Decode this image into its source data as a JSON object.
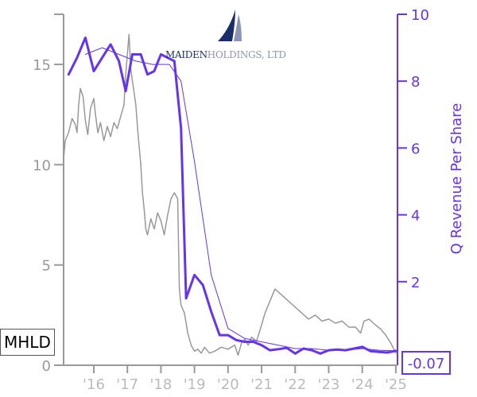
{
  "ticker": "MHLD",
  "last_value_label": "-0.07",
  "logo": {
    "name_part1": "MAIDEN",
    "name_part2": "HOLDINGS, LTD"
  },
  "colors": {
    "price": "#999999",
    "revenue": "#6633ee",
    "axis_left": "#999999",
    "axis_right": "#6633ee"
  },
  "chart_data": {
    "type": "line",
    "xlabel": "",
    "ylabel_left": "",
    "ylabel_right": "Q Revenue Per Share",
    "x_ticks": [
      "'16",
      "'17",
      "'18",
      "'19",
      "'20",
      "'21",
      "'22",
      "'23",
      "'24",
      "'25"
    ],
    "x_tick_years": [
      2016,
      2017,
      2018,
      2019,
      2020,
      2021,
      2022,
      2023,
      2024,
      2025
    ],
    "x_range": [
      2015.1,
      2025.05
    ],
    "ylim_left": [
      0,
      17.5
    ],
    "yticks_left": [
      0,
      5,
      10,
      15
    ],
    "ylim_right": [
      -0.5,
      10
    ],
    "yticks_right": [
      2,
      4,
      6,
      8,
      10
    ],
    "grid": false,
    "series": [
      {
        "axis": "left",
        "points": [
          [
            2015.1,
            10.3
          ],
          [
            2015.15,
            11.2
          ],
          [
            2015.25,
            11.6
          ],
          [
            2015.35,
            12.3
          ],
          [
            2015.45,
            12.0
          ],
          [
            2015.5,
            11.6
          ],
          [
            2015.55,
            13.0
          ],
          [
            2015.6,
            13.8
          ],
          [
            2015.68,
            13.4
          ],
          [
            2015.75,
            12.2
          ],
          [
            2015.82,
            11.5
          ],
          [
            2015.9,
            12.8
          ],
          [
            2016.0,
            13.3
          ],
          [
            2016.05,
            12.5
          ],
          [
            2016.12,
            11.6
          ],
          [
            2016.2,
            12.1
          ],
          [
            2016.3,
            11.2
          ],
          [
            2016.4,
            11.9
          ],
          [
            2016.5,
            11.4
          ],
          [
            2016.6,
            12.1
          ],
          [
            2016.7,
            11.8
          ],
          [
            2016.8,
            12.4
          ],
          [
            2016.9,
            13.0
          ],
          [
            2016.95,
            14.5
          ],
          [
            2017.0,
            15.5
          ],
          [
            2017.05,
            16.5
          ],
          [
            2017.1,
            14.8
          ],
          [
            2017.15,
            14.2
          ],
          [
            2017.25,
            13.0
          ],
          [
            2017.32,
            11.5
          ],
          [
            2017.4,
            10.0
          ],
          [
            2017.45,
            8.6
          ],
          [
            2017.5,
            7.8
          ],
          [
            2017.55,
            6.8
          ],
          [
            2017.6,
            6.5
          ],
          [
            2017.7,
            7.3
          ],
          [
            2017.8,
            6.8
          ],
          [
            2017.9,
            7.6
          ],
          [
            2018.0,
            7.2
          ],
          [
            2018.1,
            6.5
          ],
          [
            2018.2,
            7.5
          ],
          [
            2018.3,
            8.3
          ],
          [
            2018.4,
            8.6
          ],
          [
            2018.5,
            8.3
          ],
          [
            2018.55,
            3.8
          ],
          [
            2018.6,
            3.0
          ],
          [
            2018.7,
            2.6
          ],
          [
            2018.8,
            1.6
          ],
          [
            2018.9,
            1.0
          ],
          [
            2019.0,
            0.7
          ],
          [
            2019.1,
            0.8
          ],
          [
            2019.2,
            0.6
          ],
          [
            2019.3,
            0.9
          ],
          [
            2019.45,
            0.6
          ],
          [
            2019.6,
            0.7
          ],
          [
            2019.8,
            0.9
          ],
          [
            2020.0,
            0.8
          ],
          [
            2020.2,
            1.0
          ],
          [
            2020.3,
            0.5
          ],
          [
            2020.4,
            1.1
          ],
          [
            2020.5,
            1.3
          ],
          [
            2020.6,
            1.0
          ],
          [
            2020.7,
            1.4
          ],
          [
            2020.85,
            1.2
          ],
          [
            2021.0,
            2.0
          ],
          [
            2021.1,
            2.6
          ],
          [
            2021.2,
            3.0
          ],
          [
            2021.3,
            3.4
          ],
          [
            2021.4,
            3.8
          ],
          [
            2021.6,
            3.5
          ],
          [
            2021.8,
            3.2
          ],
          [
            2022.0,
            2.9
          ],
          [
            2022.2,
            2.6
          ],
          [
            2022.4,
            2.3
          ],
          [
            2022.6,
            2.5
          ],
          [
            2022.8,
            2.2
          ],
          [
            2023.0,
            2.3
          ],
          [
            2023.2,
            2.1
          ],
          [
            2023.4,
            2.2
          ],
          [
            2023.6,
            1.9
          ],
          [
            2023.8,
            1.9
          ],
          [
            2023.95,
            1.6
          ],
          [
            2024.05,
            2.2
          ],
          [
            2024.2,
            2.3
          ],
          [
            2024.4,
            2.0
          ],
          [
            2024.55,
            1.8
          ],
          [
            2024.7,
            1.5
          ],
          [
            2024.85,
            1.1
          ],
          [
            2025.0,
            0.6
          ]
        ]
      },
      {
        "axis": "right",
        "points": [
          [
            2015.25,
            8.2
          ],
          [
            2015.5,
            8.7
          ],
          [
            2015.75,
            9.3
          ],
          [
            2016.0,
            8.3
          ],
          [
            2016.25,
            8.7
          ],
          [
            2016.5,
            9.1
          ],
          [
            2016.75,
            8.6
          ],
          [
            2016.95,
            7.7
          ],
          [
            2017.15,
            8.8
          ],
          [
            2017.4,
            8.8
          ],
          [
            2017.6,
            8.2
          ],
          [
            2017.8,
            8.3
          ],
          [
            2018.0,
            8.8
          ],
          [
            2018.2,
            8.7
          ],
          [
            2018.4,
            8.6
          ],
          [
            2018.6,
            6.6
          ],
          [
            2018.75,
            1.5
          ],
          [
            2019.0,
            2.2
          ],
          [
            2019.25,
            1.9
          ],
          [
            2019.5,
            1.1
          ],
          [
            2019.75,
            0.4
          ],
          [
            2020.0,
            0.4
          ],
          [
            2020.25,
            0.25
          ],
          [
            2020.5,
            0.2
          ],
          [
            2020.75,
            0.2
          ],
          [
            2021.0,
            0.1
          ],
          [
            2021.25,
            -0.05
          ],
          [
            2021.5,
            -0.02
          ],
          [
            2021.75,
            0.02
          ],
          [
            2022.0,
            -0.15
          ],
          [
            2022.25,
            0.0
          ],
          [
            2022.5,
            -0.05
          ],
          [
            2022.75,
            -0.15
          ],
          [
            2023.0,
            -0.05
          ],
          [
            2023.25,
            -0.03
          ],
          [
            2023.5,
            -0.05
          ],
          [
            2023.75,
            0.0
          ],
          [
            2024.0,
            0.05
          ],
          [
            2024.25,
            -0.08
          ],
          [
            2024.5,
            -0.1
          ],
          [
            2024.75,
            -0.12
          ],
          [
            2025.0,
            -0.07
          ]
        ]
      },
      {
        "axis": "right",
        "points": [
          [
            2015.75,
            8.8
          ],
          [
            2016.25,
            9.0
          ],
          [
            2016.75,
            8.8
          ],
          [
            2017.25,
            8.6
          ],
          [
            2017.75,
            8.5
          ],
          [
            2018.25,
            8.5
          ],
          [
            2018.6,
            8.0
          ],
          [
            2019.0,
            5.6
          ],
          [
            2019.5,
            2.2
          ],
          [
            2020.0,
            0.6
          ],
          [
            2020.5,
            0.3
          ],
          [
            2021.0,
            0.2
          ],
          [
            2021.5,
            0.1
          ],
          [
            2022.0,
            0.0
          ],
          [
            2022.5,
            0.0
          ],
          [
            2023.0,
            -0.05
          ],
          [
            2023.5,
            -0.05
          ],
          [
            2024.0,
            0.0
          ],
          [
            2024.5,
            -0.05
          ],
          [
            2025.0,
            -0.07
          ]
        ]
      }
    ]
  }
}
